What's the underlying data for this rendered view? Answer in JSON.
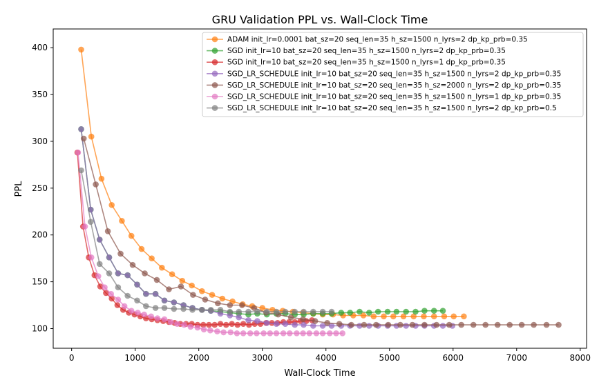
{
  "chart_data": {
    "type": "line",
    "title": "GRU Validation PPL vs. Wall-Clock Time",
    "xlabel": "Wall-Clock Time",
    "ylabel": "PPL",
    "xlim": [
      -290,
      8100
    ],
    "ylim": [
      79,
      420
    ],
    "xticks": [
      0,
      1000,
      2000,
      3000,
      4000,
      5000,
      6000,
      7000,
      8000
    ],
    "yticks": [
      100,
      150,
      200,
      250,
      300,
      350,
      400
    ],
    "grid": false,
    "legend": "top-right",
    "series": [
      {
        "name": "ADAM init_lr=0.0001 bat_sz=20 seq_len=35 h_sz=1500 n_lyrs=2 dp_kp_prb=0.35",
        "color": "#ff7f0e",
        "x": [
          150,
          310,
          470,
          630,
          790,
          940,
          1100,
          1260,
          1420,
          1580,
          1740,
          1890,
          2050,
          2210,
          2370,
          2530,
          2690,
          2840,
          3000,
          3160,
          3320,
          3480,
          3640,
          3800,
          3950,
          4110,
          4270,
          4430,
          4590,
          4750,
          4910,
          5060,
          5220,
          5380,
          5540,
          5700,
          5860,
          6010,
          6170
        ],
        "y": [
          398,
          305,
          260,
          232,
          215,
          199,
          185,
          175,
          165,
          158,
          151,
          146,
          140,
          136,
          132,
          129,
          126,
          124,
          122,
          120,
          119,
          118,
          117,
          116,
          115,
          115,
          114,
          114,
          114,
          113,
          113,
          113,
          113,
          113,
          113,
          113,
          113,
          113,
          113
        ]
      },
      {
        "name": "SGD init_lr=10 bat_sz=20 seq_len=35 h_sz=1500 n_lyrs=2 dp_kp_prb=0.35",
        "color": "#2ca02c",
        "x": [
          150,
          300,
          440,
          590,
          730,
          880,
          1030,
          1170,
          1320,
          1460,
          1610,
          1760,
          1900,
          2050,
          2190,
          2340,
          2490,
          2630,
          2780,
          2920,
          3070,
          3220,
          3360,
          3510,
          3650,
          3800,
          3950,
          4090,
          4240,
          4380,
          4530,
          4680,
          4820,
          4970,
          5110,
          5260,
          5410,
          5550,
          5700,
          5840
        ],
        "y": [
          313,
          227,
          195,
          176,
          159,
          157,
          147,
          137,
          137,
          130,
          128,
          125,
          122,
          120,
          119,
          118,
          117,
          116,
          115,
          116,
          115,
          116,
          116,
          115,
          115,
          116,
          116,
          116,
          117,
          117,
          118,
          117,
          118,
          118,
          118,
          118,
          118,
          119,
          119,
          119
        ]
      },
      {
        "name": "SGD init_lr=10 bat_sz=20 seq_len=35 h_sz=1500 n_lyrs=1 dp_kp_prb=0.35",
        "color": "#d62728",
        "x": [
          90,
          180,
          270,
          360,
          450,
          540,
          630,
          720,
          810,
          900,
          990,
          1080,
          1170,
          1260,
          1350,
          1440,
          1530,
          1620,
          1710,
          1800,
          1890,
          1980,
          2070,
          2160,
          2250,
          2340,
          2430,
          2520,
          2610,
          2700,
          2790,
          2880,
          2970,
          3060,
          3150,
          3240,
          3330,
          3420,
          3510,
          3600,
          3690,
          3780
        ],
        "y": [
          288,
          209,
          176,
          157,
          145,
          138,
          132,
          125,
          120,
          117,
          115,
          113,
          111,
          110,
          109,
          108,
          107,
          106,
          105,
          105,
          105,
          104,
          104,
          104,
          104,
          105,
          104,
          105,
          104,
          105,
          104,
          105,
          105,
          106,
          106,
          106,
          107,
          107,
          107,
          108,
          108,
          109
        ]
      },
      {
        "name": "SGD_LR_SCHEDULE init_lr=10 bat_sz=20 seq_len=35 h_sz=1500 n_lyrs=2 dp_kp_prb=0.35",
        "color": "#9467bd",
        "x": [
          150,
          300,
          440,
          590,
          730,
          880,
          1030,
          1170,
          1320,
          1460,
          1610,
          1760,
          1900,
          2050,
          2190,
          2340,
          2490,
          2630,
          2780,
          2920,
          3070,
          3220,
          3360,
          3510,
          3650,
          3800,
          3950,
          4090,
          4240,
          4380,
          4530,
          4680,
          4820,
          4970,
          5110,
          5260,
          5410,
          5550,
          5700,
          5840,
          5990
        ],
        "y": [
          313,
          227,
          195,
          176,
          159,
          157,
          147,
          137,
          137,
          130,
          128,
          125,
          122,
          120,
          119,
          116,
          114,
          112,
          109,
          108,
          106,
          105,
          105,
          104,
          104,
          103,
          103,
          103,
          103,
          103,
          103,
          103,
          103,
          103,
          103,
          103,
          103,
          103,
          103,
          103,
          103
        ]
      },
      {
        "name": "SGD_LR_SCHEDULE init_lr=10 bat_sz=20 seq_len=35 h_sz=2000 n_lyrs=2 dp_kp_prb=0.35",
        "color": "#8c564b",
        "x": [
          190,
          380,
          570,
          770,
          960,
          1150,
          1340,
          1530,
          1720,
          1910,
          2100,
          2300,
          2490,
          2680,
          2870,
          3060,
          3250,
          3450,
          3640,
          3830,
          4020,
          4210,
          4400,
          4600,
          4790,
          4980,
          5170,
          5360,
          5550,
          5740,
          5940,
          6130,
          6320,
          6510,
          6700,
          6890,
          7080,
          7270,
          7470,
          7660
        ],
        "y": [
          303,
          254,
          204,
          180,
          168,
          159,
          152,
          142,
          145,
          136,
          131,
          127,
          125,
          125,
          122,
          117,
          115,
          112,
          110,
          108,
          106,
          105,
          104,
          104,
          104,
          104,
          104,
          104,
          104,
          104,
          104,
          104,
          104,
          104,
          104,
          104,
          104,
          104,
          104,
          104
        ]
      },
      {
        "name": "SGD_LR_SCHEDULE init_lr=10 bat_sz=20 seq_len=35 h_sz=1500 n_lyrs=1 dp_kp_prb=0.35",
        "color": "#e377c2",
        "x": [
          100,
          210,
          310,
          420,
          520,
          620,
          730,
          830,
          940,
          1040,
          1140,
          1250,
          1350,
          1460,
          1560,
          1660,
          1770,
          1870,
          1980,
          2080,
          2180,
          2290,
          2390,
          2500,
          2600,
          2700,
          2810,
          2910,
          3020,
          3120,
          3220,
          3330,
          3430,
          3540,
          3640,
          3740,
          3850,
          3950,
          4060,
          4160,
          4260
        ],
        "y": [
          288,
          209,
          176,
          156,
          144,
          137,
          131,
          124,
          119,
          117,
          115,
          113,
          111,
          110,
          107,
          105,
          104,
          102,
          101,
          99,
          98,
          97,
          96,
          96,
          95,
          95,
          95,
          95,
          95,
          95,
          95,
          95,
          95,
          95,
          95,
          95,
          95,
          95,
          95,
          95,
          95
        ]
      },
      {
        "name": "SGD_LR_SCHEDULE init_lr=10 bat_sz=20 seq_len=35 h_sz=1500 n_lyrs=2 dp_kp_prb=0.5",
        "color": "#7f7f7f",
        "x": [
          150,
          300,
          440,
          590,
          730,
          880,
          1030,
          1170,
          1320,
          1460,
          1610,
          1760,
          1900,
          2050,
          2190,
          2340,
          2490,
          2630,
          2780,
          2920,
          3070,
          3220,
          3360,
          3510,
          3650,
          3800,
          3950,
          4090
        ],
        "y": [
          269,
          214,
          169,
          159,
          144,
          135,
          130,
          124,
          122,
          122,
          121,
          121,
          120,
          120,
          120,
          120,
          118,
          118,
          118,
          118,
          118,
          118,
          118,
          118,
          118,
          118,
          118,
          118
        ]
      }
    ]
  }
}
